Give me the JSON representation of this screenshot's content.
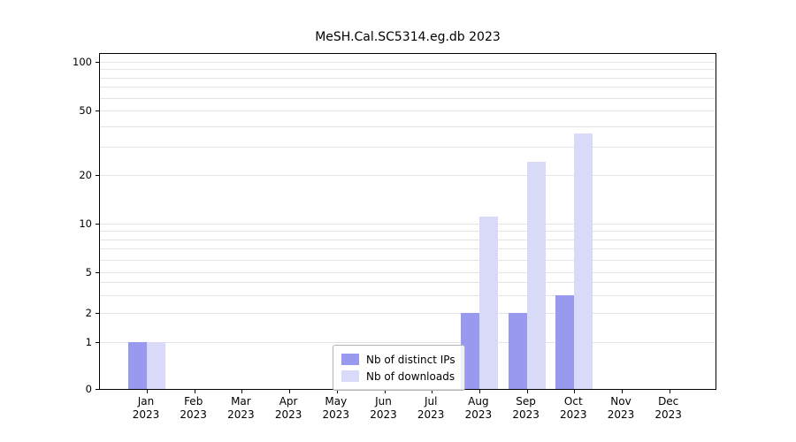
{
  "title": "MeSH.Cal.SC5314.eg.db 2023",
  "chart_data": {
    "type": "bar",
    "title": "MeSH.Cal.SC5314.eg.db 2023",
    "categories": [
      "Jan",
      "Feb",
      "Mar",
      "Apr",
      "May",
      "Jun",
      "Jul",
      "Aug",
      "Sep",
      "Oct",
      "Nov",
      "Dec"
    ],
    "year": "2023",
    "series": [
      {
        "name": "Nb of distinct IPs",
        "color": "#9999f0",
        "values": [
          1,
          0,
          0,
          0,
          0,
          0,
          0,
          2,
          2,
          3,
          0,
          0
        ]
      },
      {
        "name": "Nb of downloads",
        "color": "#d9d9f8",
        "values": [
          1,
          0,
          0,
          0,
          0,
          0,
          0,
          11,
          24,
          36,
          0,
          0
        ]
      }
    ],
    "yticks": [
      0,
      1,
      2,
      5,
      10,
      20,
      50,
      100
    ],
    "yscale": "log",
    "ylim": [
      0,
      100
    ],
    "grid": true,
    "legend_position": "bottom-center"
  },
  "legend": {
    "items": [
      {
        "label": "Nb of distinct IPs",
        "color": "#9999f0"
      },
      {
        "label": "Nb of downloads",
        "color": "#d9d9f8"
      }
    ]
  }
}
